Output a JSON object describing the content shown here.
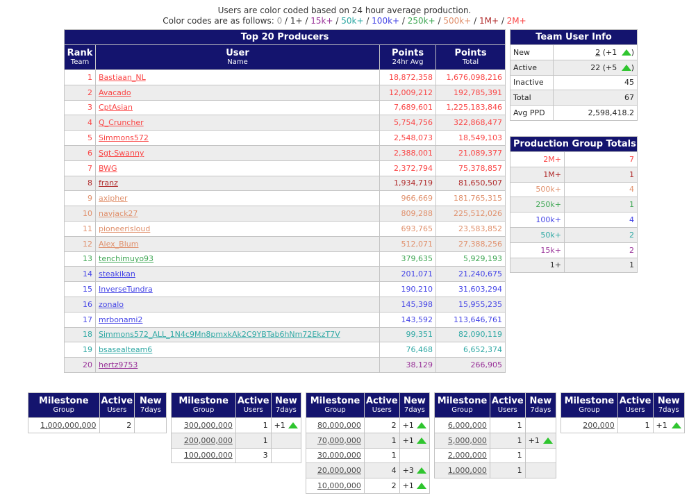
{
  "group_colors": {
    "0": "#999999",
    "1+": "#333333",
    "15k+": "#993399",
    "50k+": "#2fa8a4",
    "100k+": "#4545e6",
    "250k+": "#3fa754",
    "500k+": "#e0906c",
    "1M+": "#b02b2b",
    "2M+": "#fa4444"
  },
  "accent": {
    "header_bg": "#14146e",
    "row_alt": "#ededed",
    "border": "#c4c4c4",
    "arrow_green": "#2fc52f"
  },
  "intro": {
    "line1": "Users are color coded based on 24 hour average production.",
    "line2_prefix": "Color codes are as follows: ",
    "separator": " / ",
    "codes": [
      {
        "label": "0",
        "group": "0"
      },
      {
        "label": "1+",
        "group": "1+"
      },
      {
        "label": "15k+",
        "group": "15k+"
      },
      {
        "label": "50k+",
        "group": "50k+"
      },
      {
        "label": "100k+",
        "group": "100k+"
      },
      {
        "label": "250k+",
        "group": "250k+"
      },
      {
        "label": "500k+",
        "group": "500k+"
      },
      {
        "label": "1M+",
        "group": "1M+"
      },
      {
        "label": "2M+",
        "group": "2M+"
      }
    ]
  },
  "producers": {
    "title": "Top 20 Producers",
    "col_headers": [
      {
        "main": "Rank",
        "sub": "Team"
      },
      {
        "main": "User",
        "sub": "Name"
      },
      {
        "main": "Points",
        "sub": "24hr Avg"
      },
      {
        "main": "Points",
        "sub": "Total"
      }
    ],
    "rows": [
      {
        "rank": "1",
        "user": "Bastiaan_NL",
        "avg": "18,872,358",
        "total": "1,676,098,216",
        "group": "2M+"
      },
      {
        "rank": "2",
        "user": "Avacado",
        "avg": "12,009,212",
        "total": "192,785,391",
        "group": "2M+"
      },
      {
        "rank": "3",
        "user": "CptAsian",
        "avg": "7,689,601",
        "total": "1,225,183,846",
        "group": "2M+"
      },
      {
        "rank": "4",
        "user": "Q_Cruncher",
        "avg": "5,754,756",
        "total": "322,868,477",
        "group": "2M+"
      },
      {
        "rank": "5",
        "user": "Simmons572",
        "avg": "2,548,073",
        "total": "18,549,103",
        "group": "2M+"
      },
      {
        "rank": "6",
        "user": "Sgt-Swanny",
        "avg": "2,388,001",
        "total": "21,089,377",
        "group": "2M+"
      },
      {
        "rank": "7",
        "user": "BWG",
        "avg": "2,372,794",
        "total": "75,378,857",
        "group": "2M+"
      },
      {
        "rank": "8",
        "user": "franz",
        "avg": "1,934,719",
        "total": "81,650,507",
        "group": "1M+"
      },
      {
        "rank": "9",
        "user": "axipher",
        "avg": "966,669",
        "total": "181,765,315",
        "group": "500k+"
      },
      {
        "rank": "10",
        "user": "navjack27",
        "avg": "809,288",
        "total": "225,512,026",
        "group": "500k+"
      },
      {
        "rank": "11",
        "user": "pioneerisloud",
        "avg": "693,765",
        "total": "23,583,852",
        "group": "500k+"
      },
      {
        "rank": "12",
        "user": "Alex_Blum",
        "avg": "512,071",
        "total": "27,388,256",
        "group": "500k+"
      },
      {
        "rank": "13",
        "user": "tenchimuyo93",
        "avg": "379,635",
        "total": "5,929,193",
        "group": "250k+"
      },
      {
        "rank": "14",
        "user": "steakikan",
        "avg": "201,071",
        "total": "21,240,675",
        "group": "100k+"
      },
      {
        "rank": "15",
        "user": "InverseTundra",
        "avg": "190,210",
        "total": "31,603,294",
        "group": "100k+"
      },
      {
        "rank": "16",
        "user": "zonalo",
        "avg": "145,398",
        "total": "15,955,235",
        "group": "100k+"
      },
      {
        "rank": "17",
        "user": "mrbonami2",
        "avg": "143,592",
        "total": "113,646,761",
        "group": "100k+"
      },
      {
        "rank": "18",
        "user": "Simmons572_ALL_1N4c9Mn8pmxkAk2C9YBTab6hNm72EkzT7V",
        "avg": "99,351",
        "total": "82,090,119",
        "group": "50k+"
      },
      {
        "rank": "19",
        "user": "bsasealteam6",
        "avg": "76,468",
        "total": "6,652,374",
        "group": "50k+"
      },
      {
        "rank": "20",
        "user": "hertz9753",
        "avg": "38,129",
        "total": "266,905",
        "group": "15k+"
      }
    ]
  },
  "team_user_info": {
    "title": "Team User Info",
    "rows": [
      {
        "label": "New",
        "value": "2",
        "value_is_link": true,
        "change": "+1"
      },
      {
        "label": "Active",
        "value": "22",
        "value_is_link": false,
        "change": "+5"
      },
      {
        "label": "Inactive",
        "value": "45",
        "value_is_link": false,
        "change": ""
      },
      {
        "label": "Total",
        "value": "67",
        "value_is_link": false,
        "change": ""
      },
      {
        "label": "Avg PPD",
        "value": "2,598,418.2",
        "value_is_link": false,
        "change": ""
      }
    ]
  },
  "production_group_totals": {
    "title": "Production Group Totals",
    "rows": [
      {
        "group": "2M+",
        "count": "7"
      },
      {
        "group": "1M+",
        "count": "1"
      },
      {
        "group": "500k+",
        "count": "4"
      },
      {
        "group": "250k+",
        "count": "1"
      },
      {
        "group": "100k+",
        "count": "4"
      },
      {
        "group": "50k+",
        "count": "2"
      },
      {
        "group": "15k+",
        "count": "2"
      },
      {
        "group": "1+",
        "count": "1"
      }
    ]
  },
  "milestones": {
    "col_headers": [
      {
        "main": "Milestone",
        "sub": "Group"
      },
      {
        "main": "Active",
        "sub": "Users"
      },
      {
        "main": "New",
        "sub": "7days"
      }
    ],
    "tables": [
      {
        "rows": [
          {
            "group": "1,000,000,000",
            "active": "2",
            "new": ""
          }
        ]
      },
      {
        "rows": [
          {
            "group": "300,000,000",
            "active": "1",
            "new": "+1"
          },
          {
            "group": "200,000,000",
            "active": "1",
            "new": ""
          },
          {
            "group": "100,000,000",
            "active": "3",
            "new": ""
          }
        ]
      },
      {
        "rows": [
          {
            "group": "80,000,000",
            "active": "2",
            "new": "+1"
          },
          {
            "group": "70,000,000",
            "active": "1",
            "new": "+1"
          },
          {
            "group": "30,000,000",
            "active": "1",
            "new": ""
          },
          {
            "group": "20,000,000",
            "active": "4",
            "new": "+3"
          },
          {
            "group": "10,000,000",
            "active": "2",
            "new": "+1"
          }
        ]
      },
      {
        "rows": [
          {
            "group": "6,000,000",
            "active": "1",
            "new": ""
          },
          {
            "group": "5,000,000",
            "active": "1",
            "new": "+1"
          },
          {
            "group": "2,000,000",
            "active": "1",
            "new": ""
          },
          {
            "group": "1,000,000",
            "active": "1",
            "new": ""
          }
        ]
      },
      {
        "rows": [
          {
            "group": "200,000",
            "active": "1",
            "new": "+1"
          }
        ]
      }
    ]
  }
}
